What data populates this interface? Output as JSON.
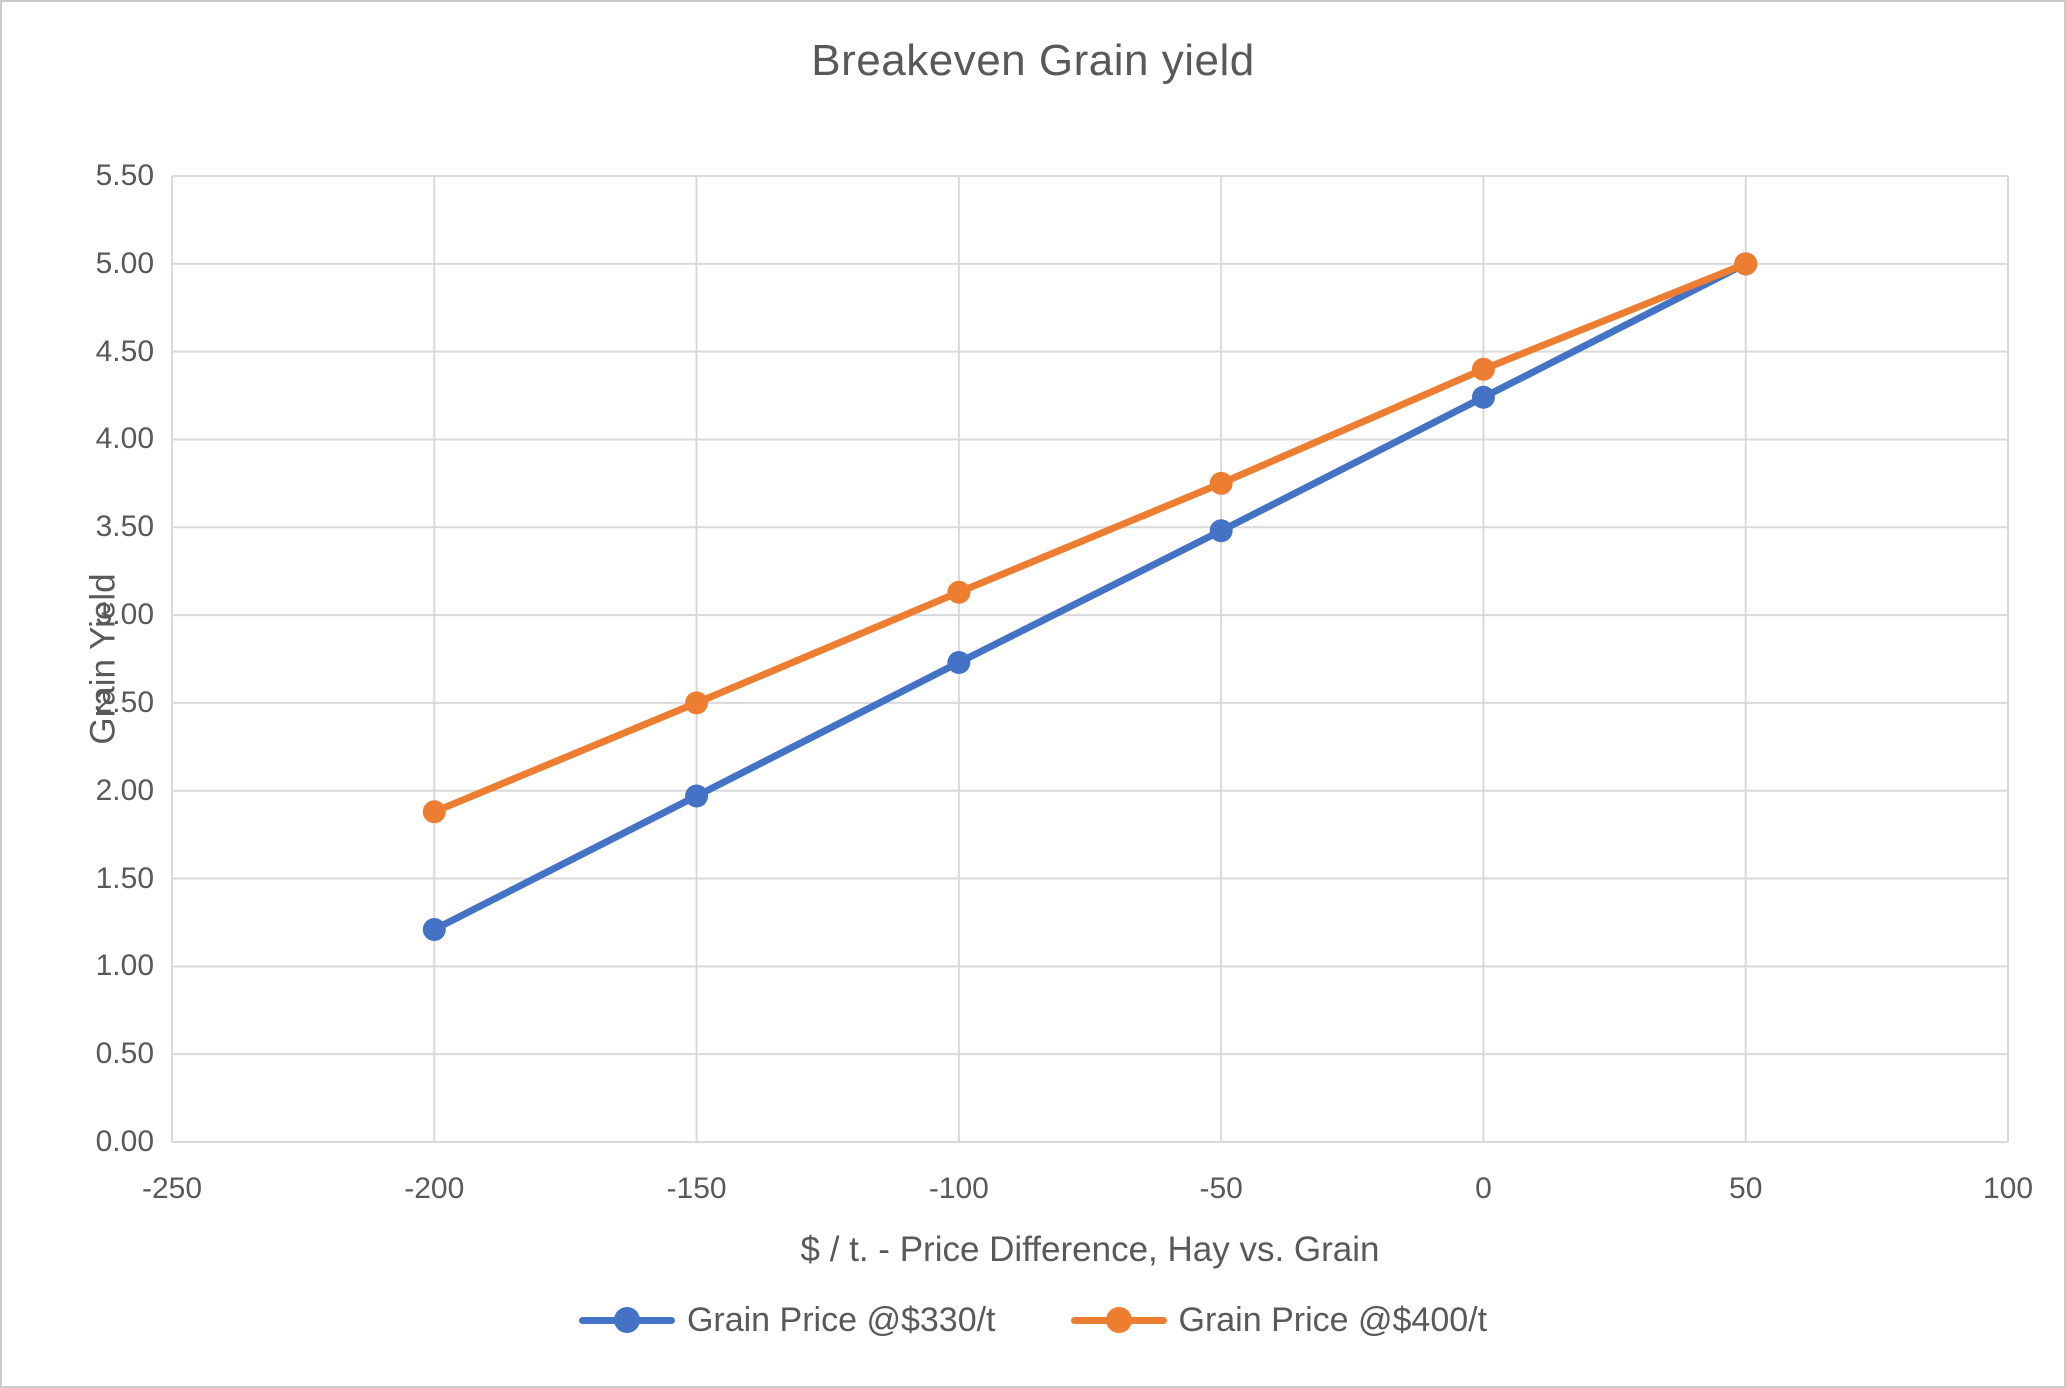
{
  "chart_data": {
    "type": "line",
    "title": "Breakeven Grain yield",
    "xlabel": "$ / t. - Price Difference, Hay vs. Grain",
    "ylabel": "Grain Yield",
    "xlim": [
      -250,
      100
    ],
    "ylim": [
      0,
      5.5
    ],
    "grid": true,
    "legend_position": "bottom",
    "x_ticks": [
      -250,
      -200,
      -150,
      -100,
      -50,
      0,
      50,
      100
    ],
    "x_tick_labels": [
      "-250",
      "-200",
      "-150",
      "-100",
      "-50",
      "0",
      "50",
      "100"
    ],
    "y_ticks": [
      0,
      0.5,
      1,
      1.5,
      2,
      2.5,
      3,
      3.5,
      4,
      4.5,
      5,
      5.5
    ],
    "y_tick_labels": [
      "0.00",
      "0.50",
      "1.00",
      "1.50",
      "2.00",
      "2.50",
      "3.00",
      "3.50",
      "4.00",
      "4.50",
      "5.00",
      "5.50"
    ],
    "x": [
      -200,
      -150,
      -100,
      -50,
      0,
      50
    ],
    "series": [
      {
        "name": "Grain Price @$330/t",
        "color": "#4472C4",
        "values": [
          1.21,
          1.97,
          2.73,
          3.48,
          4.24,
          5.0
        ]
      },
      {
        "name": "Grain Price @$400/t",
        "color": "#ED7D31",
        "values": [
          1.88,
          2.5,
          3.13,
          3.75,
          4.4,
          5.0
        ]
      }
    ],
    "colors": {
      "text": "#595959",
      "gridline": "#D9D9D9",
      "background": "#FFFFFF",
      "border": "#CBCBCB"
    }
  }
}
